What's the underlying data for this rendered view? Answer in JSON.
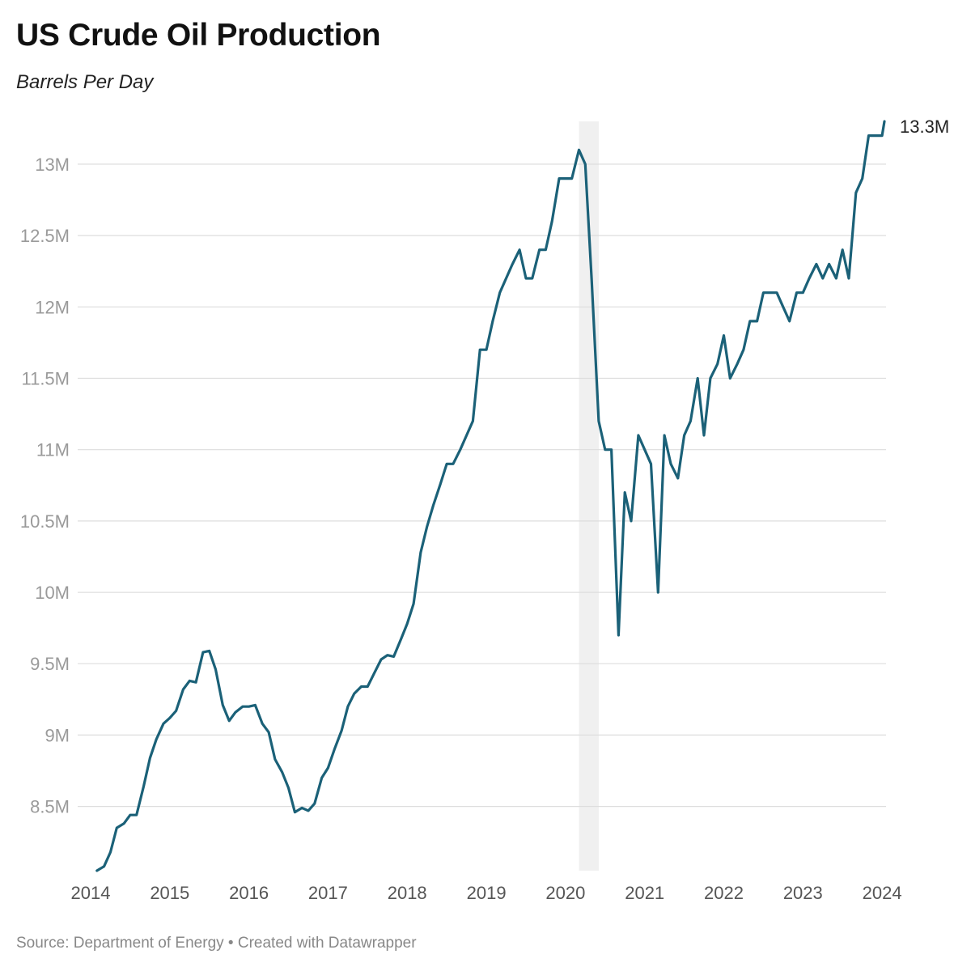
{
  "title": "US Crude Oil Production",
  "subtitle": "Barrels Per Day",
  "footer": {
    "source_prefix": "Source:",
    "source": "Department of Energy",
    "separator": "•",
    "credit": "Created with Datawrapper"
  },
  "colors": {
    "line": "#1b6178",
    "grid": "#dddddd",
    "highlight_band": "#f0f0f0",
    "tick_text": "#9a9a9a",
    "axis_text": "#555555"
  },
  "chart_data": {
    "type": "line",
    "title": "US Crude Oil Production",
    "subtitle": "Barrels Per Day",
    "xlabel": "",
    "ylabel": "",
    "xlim": [
      2014,
      2024.05
    ],
    "ylim": [
      8.05,
      13.3
    ],
    "y_ticks": [
      {
        "value": 8.5,
        "label": "8.5M"
      },
      {
        "value": 9,
        "label": "9M"
      },
      {
        "value": 9.5,
        "label": "9.5M"
      },
      {
        "value": 10,
        "label": "10M"
      },
      {
        "value": 10.5,
        "label": "10.5M"
      },
      {
        "value": 11,
        "label": "11M"
      },
      {
        "value": 11.5,
        "label": "11.5M"
      },
      {
        "value": 12,
        "label": "12M"
      },
      {
        "value": 12.5,
        "label": "12.5M"
      },
      {
        "value": 13,
        "label": "13M"
      }
    ],
    "x_ticks": [
      "2014",
      "2015",
      "2016",
      "2017",
      "2018",
      "2019",
      "2020",
      "2021",
      "2022",
      "2023",
      "2024"
    ],
    "grid": true,
    "highlight_range": [
      2020.17,
      2020.42
    ],
    "end_label": "13.3M",
    "series": [
      {
        "units": "million barrels per day",
        "points": [
          [
            2014.08,
            8.05
          ],
          [
            2014.17,
            8.08
          ],
          [
            2014.25,
            8.18
          ],
          [
            2014.33,
            8.35
          ],
          [
            2014.42,
            8.38
          ],
          [
            2014.5,
            8.44
          ],
          [
            2014.58,
            8.44
          ],
          [
            2014.67,
            8.64
          ],
          [
            2014.75,
            8.84
          ],
          [
            2014.83,
            8.97
          ],
          [
            2014.92,
            9.08
          ],
          [
            2015.0,
            9.12
          ],
          [
            2015.08,
            9.17
          ],
          [
            2015.17,
            9.32
          ],
          [
            2015.25,
            9.38
          ],
          [
            2015.33,
            9.37
          ],
          [
            2015.42,
            9.58
          ],
          [
            2015.5,
            9.59
          ],
          [
            2015.58,
            9.46
          ],
          [
            2015.67,
            9.21
          ],
          [
            2015.75,
            9.1
          ],
          [
            2015.83,
            9.16
          ],
          [
            2015.92,
            9.2
          ],
          [
            2016.0,
            9.2
          ],
          [
            2016.08,
            9.21
          ],
          [
            2016.17,
            9.08
          ],
          [
            2016.25,
            9.02
          ],
          [
            2016.33,
            8.83
          ],
          [
            2016.42,
            8.74
          ],
          [
            2016.5,
            8.63
          ],
          [
            2016.58,
            8.46
          ],
          [
            2016.67,
            8.49
          ],
          [
            2016.75,
            8.47
          ],
          [
            2016.83,
            8.52
          ],
          [
            2016.92,
            8.7
          ],
          [
            2017.0,
            8.77
          ],
          [
            2017.08,
            8.9
          ],
          [
            2017.17,
            9.03
          ],
          [
            2017.25,
            9.2
          ],
          [
            2017.33,
            9.29
          ],
          [
            2017.42,
            9.34
          ],
          [
            2017.5,
            9.34
          ],
          [
            2017.58,
            9.43
          ],
          [
            2017.67,
            9.53
          ],
          [
            2017.75,
            9.56
          ],
          [
            2017.83,
            9.55
          ],
          [
            2017.92,
            9.67
          ],
          [
            2018.0,
            9.78
          ],
          [
            2018.08,
            9.92
          ],
          [
            2018.17,
            10.28
          ],
          [
            2018.25,
            10.46
          ],
          [
            2018.33,
            10.61
          ],
          [
            2018.42,
            10.76
          ],
          [
            2018.5,
            10.9
          ],
          [
            2018.58,
            10.9
          ],
          [
            2018.67,
            11.0
          ],
          [
            2018.75,
            11.1
          ],
          [
            2018.83,
            11.2
          ],
          [
            2018.92,
            11.7
          ],
          [
            2019.0,
            11.7
          ],
          [
            2019.08,
            11.9
          ],
          [
            2019.17,
            12.1
          ],
          [
            2019.25,
            12.2
          ],
          [
            2019.33,
            12.3
          ],
          [
            2019.42,
            12.4
          ],
          [
            2019.5,
            12.2
          ],
          [
            2019.58,
            12.2
          ],
          [
            2019.67,
            12.4
          ],
          [
            2019.75,
            12.4
          ],
          [
            2019.83,
            12.6
          ],
          [
            2019.92,
            12.9
          ],
          [
            2020.0,
            12.9
          ],
          [
            2020.08,
            12.9
          ],
          [
            2020.17,
            13.1
          ],
          [
            2020.25,
            13.0
          ],
          [
            2020.33,
            12.2
          ],
          [
            2020.42,
            11.2
          ],
          [
            2020.5,
            11.0
          ],
          [
            2020.58,
            11.0
          ],
          [
            2020.67,
            9.7
          ],
          [
            2020.75,
            10.7
          ],
          [
            2020.83,
            10.5
          ],
          [
            2020.92,
            11.1
          ],
          [
            2021.0,
            11.0
          ],
          [
            2021.08,
            10.9
          ],
          [
            2021.17,
            10.0
          ],
          [
            2021.25,
            11.1
          ],
          [
            2021.33,
            10.9
          ],
          [
            2021.42,
            10.8
          ],
          [
            2021.5,
            11.1
          ],
          [
            2021.58,
            11.2
          ],
          [
            2021.67,
            11.5
          ],
          [
            2021.75,
            11.1
          ],
          [
            2021.83,
            11.5
          ],
          [
            2021.92,
            11.6
          ],
          [
            2022.0,
            11.8
          ],
          [
            2022.08,
            11.5
          ],
          [
            2022.17,
            11.6
          ],
          [
            2022.25,
            11.7
          ],
          [
            2022.33,
            11.9
          ],
          [
            2022.42,
            11.9
          ],
          [
            2022.5,
            12.1
          ],
          [
            2022.58,
            12.1
          ],
          [
            2022.67,
            12.1
          ],
          [
            2022.75,
            12.0
          ],
          [
            2022.83,
            11.9
          ],
          [
            2022.92,
            12.1
          ],
          [
            2023.0,
            12.1
          ],
          [
            2023.08,
            12.2
          ],
          [
            2023.17,
            12.3
          ],
          [
            2023.25,
            12.2
          ],
          [
            2023.33,
            12.3
          ],
          [
            2023.42,
            12.2
          ],
          [
            2023.5,
            12.4
          ],
          [
            2023.58,
            12.2
          ],
          [
            2023.67,
            12.8
          ],
          [
            2023.75,
            12.9
          ],
          [
            2023.83,
            13.2
          ],
          [
            2023.92,
            13.2
          ],
          [
            2024.0,
            13.2
          ],
          [
            2024.03,
            13.3
          ]
        ]
      }
    ]
  }
}
